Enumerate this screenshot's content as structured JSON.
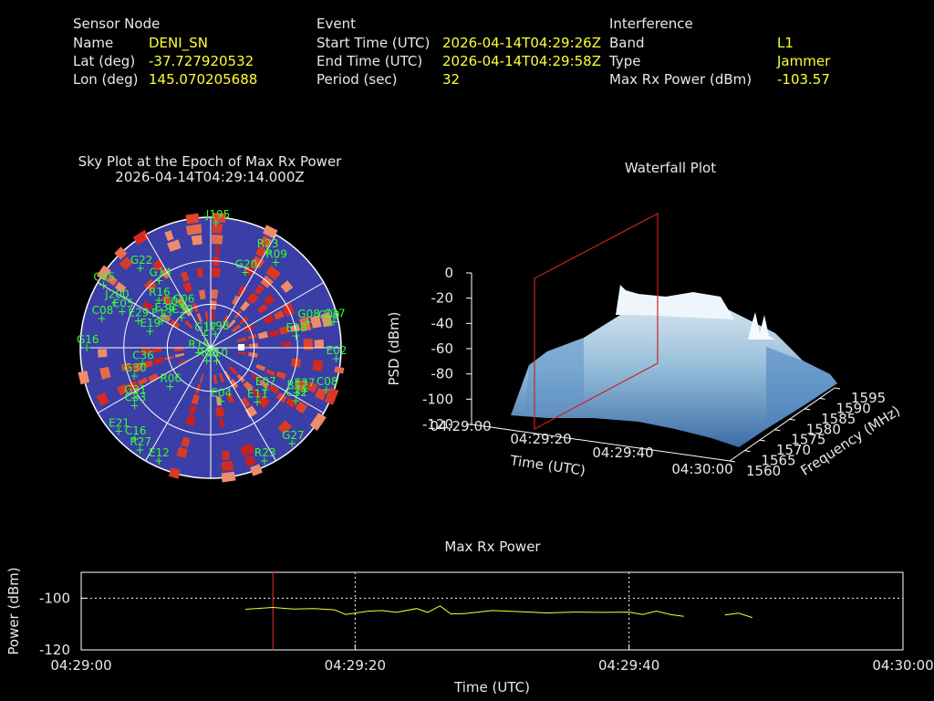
{
  "sensor": {
    "heading": "Sensor Node",
    "name_label": "Name",
    "name": "DENI_SN",
    "lat_label": "Lat (deg)",
    "lat": "-37.727920532",
    "lon_label": "Lon (deg)",
    "lon": "145.070205688"
  },
  "event": {
    "heading": "Event",
    "start_label": "Start Time (UTC)",
    "start": "2026-04-14T04:29:26Z",
    "end_label": "End Time (UTC)",
    "end": "2026-04-14T04:29:58Z",
    "period_label": "Period (sec)",
    "period": "32"
  },
  "interference": {
    "heading": "Interference",
    "band_label": "Band",
    "band": "L1",
    "type_label": "Type",
    "type": "Jammer",
    "power_label": "Max Rx Power (dBm)",
    "power": "-103.57"
  },
  "colors": {
    "label": "#e8e8e8",
    "value": "#ffff33",
    "sky_bg": "#3a3ea6",
    "sat": "#33ff33",
    "marker": "#cc2222"
  },
  "chart_data": [
    {
      "type": "scatter",
      "title": "Sky Plot at the Epoch of Max Rx Power",
      "subtitle": "2026-04-14T04:29:14.000Z",
      "satellites": [
        {
          "id": "J195",
          "az": 2,
          "el": 88
        },
        {
          "id": "G22",
          "az": 318,
          "el": 75
        },
        {
          "id": "R23",
          "az": 30,
          "el": 78
        },
        {
          "id": "R09",
          "az": 37,
          "el": 75
        },
        {
          "id": "G14",
          "az": 322,
          "el": 60
        },
        {
          "id": "C45",
          "az": 300,
          "el": 88
        },
        {
          "id": "R16",
          "az": 312,
          "el": 50
        },
        {
          "id": "G20",
          "az": 24,
          "el": 58
        },
        {
          "id": "C03",
          "az": 315,
          "el": 38
        },
        {
          "id": "C06",
          "az": 325,
          "el": 35
        },
        {
          "id": "J200",
          "az": 295,
          "el": 75
        },
        {
          "id": "C08",
          "az": 285,
          "el": 80
        },
        {
          "id": "C05",
          "az": 292,
          "el": 68
        },
        {
          "id": "E36",
          "az": 304,
          "el": 40
        },
        {
          "id": "C38",
          "az": 315,
          "el": 30
        },
        {
          "id": "E29",
          "az": 290,
          "el": 55
        },
        {
          "id": "E13",
          "az": 298,
          "el": 40
        },
        {
          "id": "E19",
          "az": 285,
          "el": 45
        },
        {
          "id": "G17",
          "az": 330,
          "el": 10
        },
        {
          "id": "J198",
          "az": 15,
          "el": 10
        },
        {
          "id": "G08",
          "az": 75,
          "el": 70
        },
        {
          "id": "C27",
          "az": 78,
          "el": 88
        },
        {
          "id": "C09",
          "az": 78,
          "el": 84
        },
        {
          "id": "E18",
          "az": 82,
          "el": 60
        },
        {
          "id": "E02",
          "az": 95,
          "el": 88
        },
        {
          "id": "R15",
          "az": 250,
          "el": 10
        },
        {
          "id": "G16",
          "az": 270,
          "el": 88
        },
        {
          "id": "C36",
          "az": 257,
          "el": 50
        },
        {
          "id": "G30",
          "az": 250,
          "el": 58
        },
        {
          "id": "R08",
          "az": 200,
          "el": 10
        },
        {
          "id": "R06",
          "az": 227,
          "el": 40
        },
        {
          "id": "C10",
          "az": 160,
          "el": 10
        },
        {
          "id": "E04",
          "az": 170,
          "el": 38
        },
        {
          "id": "C33",
          "az": 233,
          "el": 68
        },
        {
          "id": "G31",
          "az": 237,
          "el": 65
        },
        {
          "id": "E11",
          "az": 140,
          "el": 50
        },
        {
          "id": "E07",
          "az": 128,
          "el": 48
        },
        {
          "id": "R12",
          "az": 118,
          "el": 68
        },
        {
          "id": "C32",
          "az": 122,
          "el": 70
        },
        {
          "id": "E37",
          "az": 115,
          "el": 72
        },
        {
          "id": "C08",
          "az": 110,
          "el": 86
        },
        {
          "id": "E21",
          "az": 228,
          "el": 88
        },
        {
          "id": "C16",
          "az": 220,
          "el": 84
        },
        {
          "id": "R27",
          "az": 215,
          "el": 88
        },
        {
          "id": "E12",
          "az": 205,
          "el": 88
        },
        {
          "id": "G27",
          "az": 140,
          "el": 88
        },
        {
          "id": "R23",
          "az": 155,
          "el": 88
        }
      ]
    },
    {
      "type": "surface",
      "title": "Waterfall Plot",
      "zlabel": "PSD (dBm)",
      "zlim": [
        -120,
        0
      ],
      "zticks": [
        0,
        -20,
        -40,
        -60,
        -80,
        -100,
        -120
      ],
      "xlabel": "Time (UTC)",
      "xticks": [
        "04:29:00",
        "04:29:20",
        "04:29:40",
        "04:30:00"
      ],
      "ylabel": "Frequency (MHz)",
      "yticks": [
        1560,
        1565,
        1570,
        1575,
        1580,
        1585,
        1590,
        1595
      ]
    },
    {
      "type": "line",
      "title": "Max Rx Power",
      "xlabel": "Time (UTC)",
      "ylabel": "Power (dBm)",
      "xticks": [
        "04:29:00",
        "04:29:20",
        "04:29:40",
        "04:30:00"
      ],
      "ylim": [
        -120,
        -90
      ],
      "yticks": [
        -100,
        -120
      ],
      "marker_time_s": 14,
      "segments": [
        [
          [
            12,
            -104.3
          ],
          [
            14,
            -103.6
          ],
          [
            15.5,
            -104.2
          ],
          [
            17,
            -104.0
          ],
          [
            18.5,
            -104.5
          ],
          [
            19.3,
            -106.3
          ],
          [
            21,
            -105.0
          ],
          [
            22,
            -104.8
          ],
          [
            23,
            -105.5
          ],
          [
            24.5,
            -104.0
          ],
          [
            25.3,
            -105.5
          ],
          [
            26.2,
            -103.0
          ],
          [
            27,
            -106.1
          ],
          [
            28,
            -106.0
          ],
          [
            30,
            -104.8
          ],
          [
            32,
            -105.2
          ],
          [
            34,
            -105.7
          ],
          [
            36,
            -105.4
          ],
          [
            38,
            -105.5
          ],
          [
            40,
            -105.4
          ],
          [
            41,
            -106.3
          ],
          [
            42,
            -105.0
          ],
          [
            43,
            -106.3
          ],
          [
            44,
            -107.0
          ]
        ],
        [
          [
            47,
            -106.5
          ],
          [
            48,
            -105.8
          ],
          [
            49,
            -107.5
          ]
        ]
      ]
    }
  ]
}
